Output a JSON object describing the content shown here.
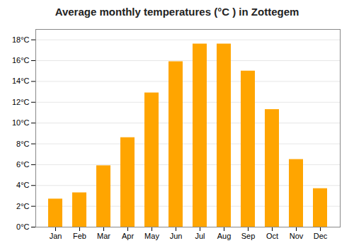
{
  "chart_data": {
    "type": "bar",
    "title": "Average monthly temperatures (°C ) in Zottegem",
    "categories": [
      "Jan",
      "Feb",
      "Mar",
      "Apr",
      "May",
      "Jun",
      "Jul",
      "Aug",
      "Sep",
      "Oct",
      "Nov",
      "Dec"
    ],
    "values": [
      2.7,
      3.3,
      5.9,
      8.6,
      12.9,
      15.9,
      17.6,
      17.6,
      15.0,
      11.3,
      6.5,
      3.7
    ],
    "color": "#FFA500",
    "ylim": [
      0,
      19
    ],
    "yticks": [
      {
        "value": 0,
        "label": "0°C"
      },
      {
        "value": 2,
        "label": "2°C"
      },
      {
        "value": 4,
        "label": "4°C"
      },
      {
        "value": 6,
        "label": "6°C"
      },
      {
        "value": 8,
        "label": "8°C"
      },
      {
        "value": 10,
        "label": "10°C"
      },
      {
        "value": 12,
        "label": "12°C"
      },
      {
        "value": 14,
        "label": "14°C"
      },
      {
        "value": 16,
        "label": "16°C"
      },
      {
        "value": 18,
        "label": "18°C"
      }
    ],
    "grid": true
  }
}
